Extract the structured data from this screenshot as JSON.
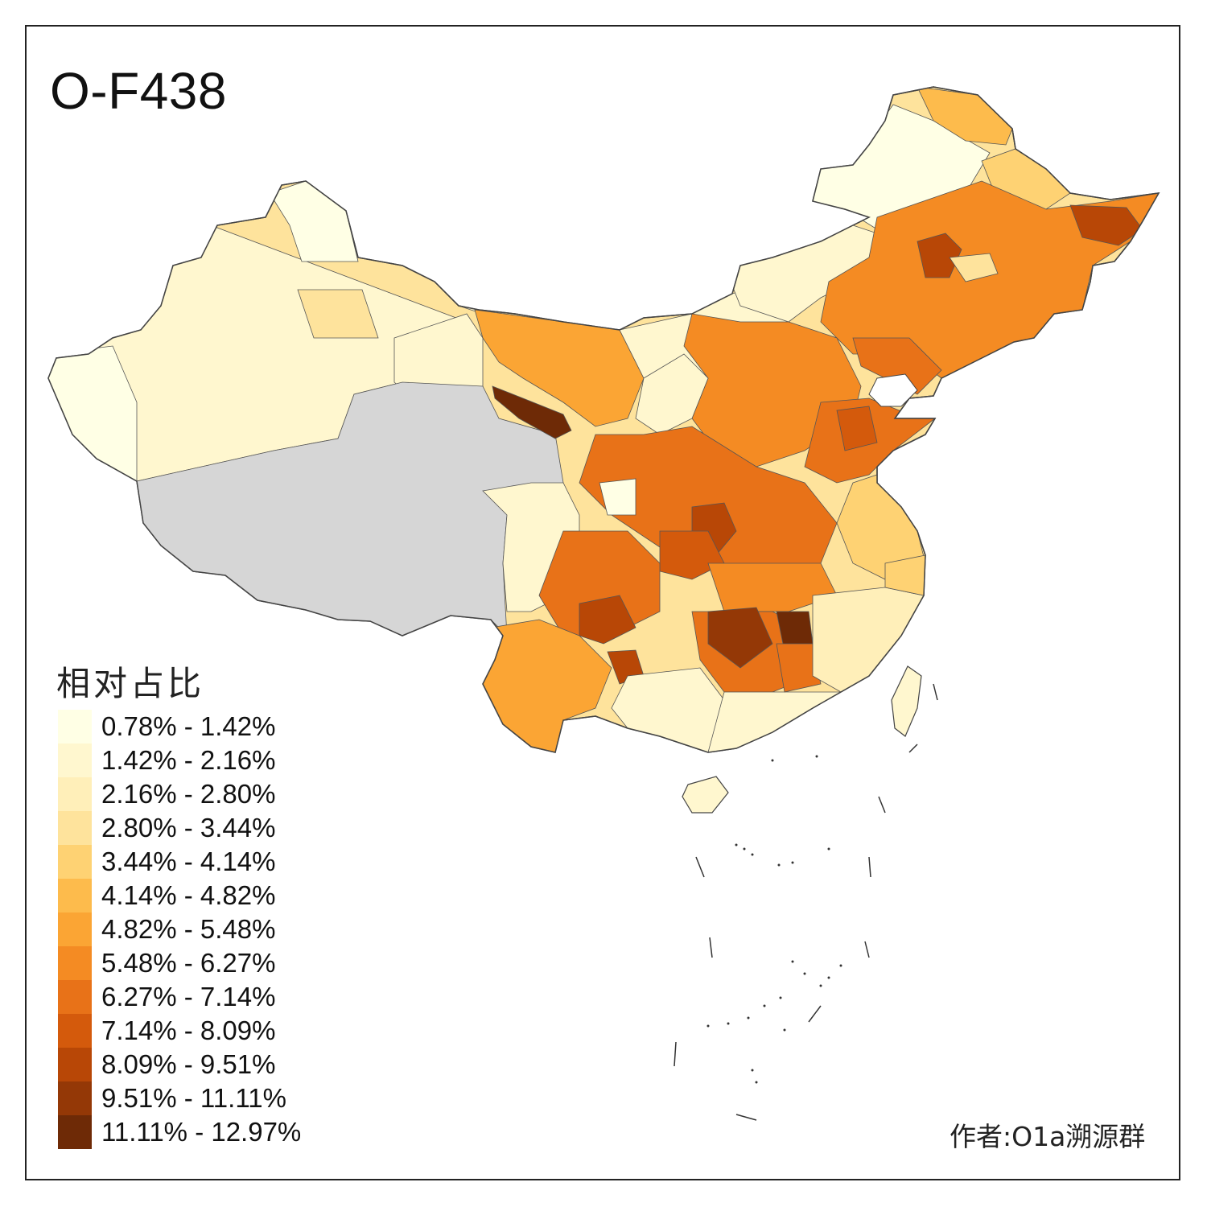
{
  "title": "O-F438",
  "legend": {
    "title": "相对占比",
    "items": [
      {
        "label": "0.78% - 1.42%",
        "color": "#ffffe5"
      },
      {
        "label": "1.42% - 2.16%",
        "color": "#fff7cf"
      },
      {
        "label": "2.16% - 2.80%",
        "color": "#ffefb9"
      },
      {
        "label": "2.80% - 3.44%",
        "color": "#fee39c"
      },
      {
        "label": "3.44% - 4.14%",
        "color": "#fed273"
      },
      {
        "label": "4.14% - 4.82%",
        "color": "#fdbb4c"
      },
      {
        "label": "4.82% - 5.48%",
        "color": "#fba534"
      },
      {
        "label": "5.48% - 6.27%",
        "color": "#f48b23"
      },
      {
        "label": "6.27% - 7.14%",
        "color": "#e87218"
      },
      {
        "label": "7.14% - 8.09%",
        "color": "#d45a0c"
      },
      {
        "label": "8.09% - 9.51%",
        "color": "#b84706"
      },
      {
        "label": "9.51% - 11.11%",
        "color": "#943806"
      },
      {
        "label": "11.11% - 12.97%",
        "color": "#6e2a06"
      }
    ]
  },
  "author": "作者:O1a溯源群",
  "no_data_color": "#d6d6d6",
  "border_color": "#444444"
}
